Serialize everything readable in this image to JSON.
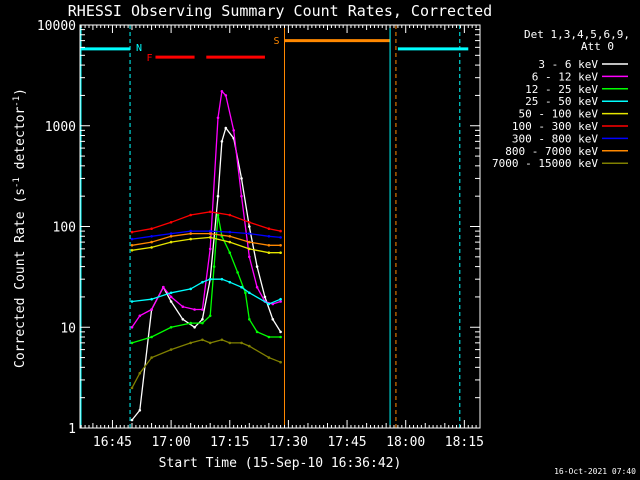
{
  "chart_data": {
    "type": "line",
    "title": "RHESSI Observing Summary Count Rates, Corrected",
    "xlabel": "Start Time (15-Sep-10 16:36:42)",
    "ylabel": "Corrected Count Rate (s",
    "ylabel_sup1": "-1",
    "ylabel_mid": " detector",
    "ylabel_sup2": "-1",
    "ylabel_end": ")",
    "yscale": "log",
    "ylim": [
      1,
      10000
    ],
    "xlim": [
      "16:36:42",
      "18:19:00"
    ],
    "x_ticks": [
      "16:45",
      "17:00",
      "17:15",
      "17:30",
      "17:45",
      "18:00",
      "18:15"
    ],
    "y_ticks": [
      "1",
      "10",
      "100",
      "1000",
      "10000"
    ],
    "legend_header": [
      "Det 1,3,4,5,6,9,",
      "Att 0"
    ],
    "legend_position": "right",
    "footer": "16-Oct-2021 07:40",
    "flags": {
      "N": "N",
      "F": "F",
      "S": "S"
    },
    "series": [
      {
        "name": "3 - 6 keV",
        "color": "#ffffff",
        "x": [
          "16:50",
          "16:52",
          "16:55",
          "16:58",
          "17:00",
          "17:03",
          "17:06",
          "17:08",
          "17:10",
          "17:12",
          "17:13",
          "17:14",
          "17:16",
          "17:18",
          "17:20",
          "17:22",
          "17:24",
          "17:26",
          "17:28"
        ],
        "values": [
          1.2,
          1.5,
          15,
          25,
          18,
          12,
          10,
          12,
          30,
          200,
          700,
          950,
          750,
          300,
          100,
          40,
          20,
          12,
          9
        ]
      },
      {
        "name": "6 - 12 keV",
        "color": "#ff00ff",
        "x": [
          "16:50",
          "16:52",
          "16:55",
          "16:58",
          "17:00",
          "17:03",
          "17:06",
          "17:08",
          "17:10",
          "17:12",
          "17:13",
          "17:14",
          "17:16",
          "17:18",
          "17:20",
          "17:22",
          "17:24",
          "17:26",
          "17:28"
        ],
        "values": [
          10,
          13,
          15,
          25,
          20,
          16,
          15,
          15,
          60,
          1200,
          2200,
          2000,
          900,
          200,
          50,
          25,
          18,
          17,
          18
        ]
      },
      {
        "name": "12 - 25 keV",
        "color": "#00ff00",
        "x": [
          "16:50",
          "16:55",
          "17:00",
          "17:05",
          "17:08",
          "17:10",
          "17:11",
          "17:12",
          "17:13",
          "17:15",
          "17:17",
          "17:19",
          "17:20",
          "17:22",
          "17:25",
          "17:28"
        ],
        "values": [
          7,
          8,
          10,
          11,
          11,
          13,
          40,
          130,
          80,
          55,
          35,
          22,
          12,
          9,
          8,
          8
        ]
      },
      {
        "name": "25 - 50 keV",
        "color": "#00ffff",
        "x": [
          "16:50",
          "16:55",
          "17:00",
          "17:05",
          "17:08",
          "17:10",
          "17:13",
          "17:15",
          "17:18",
          "17:20",
          "17:25",
          "17:28"
        ],
        "values": [
          18,
          19,
          22,
          24,
          28,
          30,
          30,
          28,
          25,
          22,
          17,
          19
        ]
      },
      {
        "name": "50 - 100 keV",
        "color": "#e6e600",
        "x": [
          "16:50",
          "16:55",
          "17:00",
          "17:05",
          "17:10",
          "17:15",
          "17:20",
          "17:25",
          "17:28"
        ],
        "values": [
          58,
          62,
          70,
          75,
          78,
          70,
          60,
          55,
          55
        ]
      },
      {
        "name": "100 - 300 keV",
        "color": "#ff0000",
        "x": [
          "16:50",
          "16:55",
          "17:00",
          "17:05",
          "17:10",
          "17:15",
          "17:20",
          "17:25",
          "17:28"
        ],
        "values": [
          88,
          95,
          110,
          130,
          140,
          130,
          110,
          95,
          90
        ]
      },
      {
        "name": "300 - 800 keV",
        "color": "#0000ff",
        "x": [
          "16:50",
          "16:55",
          "17:00",
          "17:05",
          "17:10",
          "17:15",
          "17:20",
          "17:25",
          "17:28"
        ],
        "values": [
          75,
          80,
          85,
          90,
          90,
          88,
          85,
          80,
          78
        ]
      },
      {
        "name": "800 - 7000 keV",
        "color": "#ff8800",
        "x": [
          "16:50",
          "16:55",
          "17:00",
          "17:05",
          "17:10",
          "17:15",
          "17:20",
          "17:25",
          "17:28"
        ],
        "values": [
          65,
          70,
          80,
          85,
          85,
          80,
          70,
          65,
          65
        ]
      },
      {
        "name": "7000 - 15000 keV",
        "color": "#808000",
        "x": [
          "16:50",
          "16:52",
          "16:55",
          "17:00",
          "17:05",
          "17:08",
          "17:10",
          "17:13",
          "17:15",
          "17:18",
          "17:20",
          "17:25",
          "17:28"
        ],
        "values": [
          2.5,
          3.5,
          5,
          6,
          7,
          7.5,
          7,
          7.5,
          7,
          7,
          6.5,
          5,
          4.5
        ]
      }
    ],
    "night_flag": {
      "color": "#00ffff",
      "value": 5800,
      "x": [
        [
          "16:36:42",
          "16:49:30"
        ],
        [
          "17:58",
          "18:16"
        ]
      ]
    },
    "flare_flag": {
      "color": "#ff0000",
      "value": 4800,
      "x": [
        [
          "16:56",
          "17:06"
        ],
        [
          "17:09",
          "17:24"
        ]
      ]
    },
    "saa_flag": {
      "color": "#ff8800",
      "value": 7000,
      "x": [
        [
          "17:29",
          "17:56"
        ]
      ]
    },
    "night_lines": {
      "color": "#00ffff",
      "x": [
        "16:49:30",
        "17:56",
        "18:13:50"
      ]
    },
    "saa_lines": {
      "color": "#ff8800",
      "x": [
        "17:29",
        "17:57:30"
      ]
    }
  }
}
